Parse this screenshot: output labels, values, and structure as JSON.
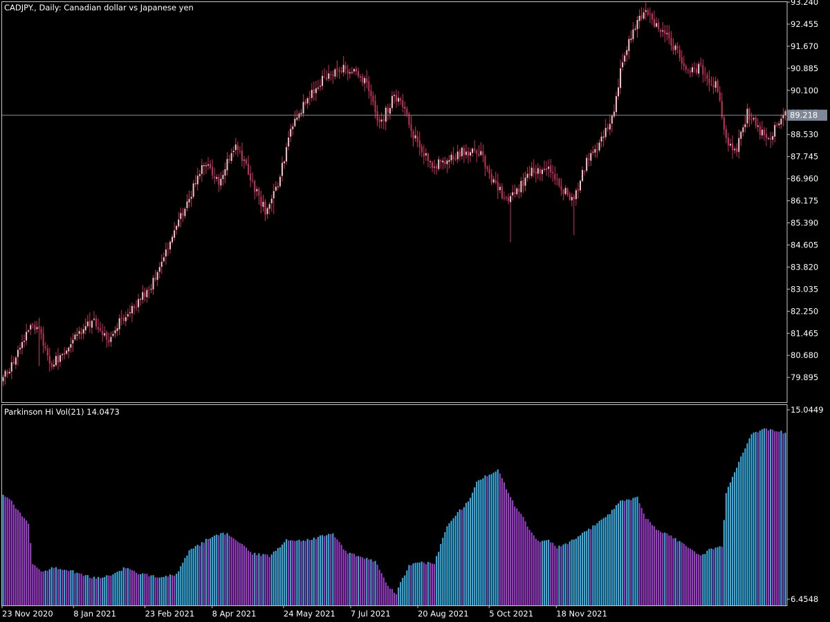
{
  "colors": {
    "background": "#000000",
    "frame": "#c8c8c8",
    "candle": "#c8305e",
    "bull_body": "#f4c6c6",
    "price_line": "#8a8f99",
    "price_tag": "#7f8897",
    "hist_up": "#3ab4e8",
    "hist_down": "#a13fd0",
    "text": "#ffffff"
  },
  "main_title": "CADJPY., Daily:  Canadian dollar vs Japanese yen",
  "indicator_title": "Parkinson Hi Vol(21) 14.0473",
  "chart_data": [
    {
      "type": "candlestick",
      "symbol": "CADJPY.",
      "timeframe": "Daily",
      "description": "Canadian dollar vs Japanese yen",
      "ylim": [
        79.26,
        93.24
      ],
      "y_ticks": [
        "93.240",
        "92.455",
        "91.670",
        "90.885",
        "90.100",
        "89.315",
        "88.530",
        "87.745",
        "86.960",
        "86.175",
        "85.390",
        "84.605",
        "83.820",
        "83.035",
        "82.250",
        "81.465",
        "80.680",
        "79.895"
      ],
      "current_price": 89.218,
      "current_price_label": "89.218",
      "close_anchors": [
        [
          0,
          79.9
        ],
        [
          6,
          80.6
        ],
        [
          12,
          81.7
        ],
        [
          17,
          81.6
        ],
        [
          22,
          80.3
        ],
        [
          28,
          80.7
        ],
        [
          35,
          81.4
        ],
        [
          42,
          81.9
        ],
        [
          50,
          81.3
        ],
        [
          56,
          82.0
        ],
        [
          64,
          82.6
        ],
        [
          70,
          83.2
        ],
        [
          76,
          84.2
        ],
        [
          85,
          85.8
        ],
        [
          95,
          87.5
        ],
        [
          102,
          86.9
        ],
        [
          110,
          88.2
        ],
        [
          118,
          86.8
        ],
        [
          124,
          85.8
        ],
        [
          130,
          86.8
        ],
        [
          136,
          88.6
        ],
        [
          142,
          89.6
        ],
        [
          150,
          90.4
        ],
        [
          158,
          90.8
        ],
        [
          165,
          90.9
        ],
        [
          172,
          90.4
        ],
        [
          178,
          88.9
        ],
        [
          185,
          89.9
        ],
        [
          190,
          89.6
        ],
        [
          194,
          88.5
        ],
        [
          202,
          87.5
        ],
        [
          208,
          87.5
        ],
        [
          216,
          87.9
        ],
        [
          226,
          87.9
        ],
        [
          232,
          86.8
        ],
        [
          238,
          86.2
        ],
        [
          244,
          86.6
        ],
        [
          250,
          87.3
        ],
        [
          258,
          87.3
        ],
        [
          264,
          86.6
        ],
        [
          270,
          86.2
        ],
        [
          276,
          87.6
        ],
        [
          283,
          88.3
        ],
        [
          289,
          89.4
        ],
        [
          293,
          91.2
        ],
        [
          298,
          92.3
        ],
        [
          303,
          92.9
        ],
        [
          309,
          92.4
        ],
        [
          316,
          91.8
        ],
        [
          323,
          90.9
        ],
        [
          330,
          90.9
        ],
        [
          335,
          90.4
        ],
        [
          338,
          90.2
        ],
        [
          342,
          88.3
        ],
        [
          347,
          88.0
        ],
        [
          352,
          89.3
        ],
        [
          358,
          88.6
        ],
        [
          362,
          88.4
        ],
        [
          366,
          88.8
        ],
        [
          370,
          89.3
        ]
      ],
      "lows": [
        {
          "i": 17,
          "low": 80.3
        },
        {
          "i": 128,
          "low": 85.7
        },
        {
          "i": 240,
          "low": 84.7
        },
        {
          "i": 270,
          "low": 84.95
        }
      ],
      "highs": [
        {
          "i": 306,
          "high": 93.05
        }
      ]
    },
    {
      "type": "bar",
      "name": "Parkinson Hi Vol(21)",
      "last_value": 14.0473,
      "ylim": [
        6.4548,
        15.0449
      ],
      "y_ticks": [
        "15.0449",
        "6.4548"
      ],
      "value_anchors": [
        [
          0,
          11.3
        ],
        [
          4,
          11.0
        ],
        [
          8,
          10.5
        ],
        [
          12,
          10.0
        ],
        [
          14,
          8.3
        ],
        [
          18,
          7.9
        ],
        [
          24,
          8.1
        ],
        [
          34,
          7.9
        ],
        [
          44,
          7.6
        ],
        [
          52,
          7.8
        ],
        [
          58,
          8.1
        ],
        [
          64,
          7.8
        ],
        [
          74,
          7.7
        ],
        [
          82,
          7.8
        ],
        [
          88,
          8.8
        ],
        [
          96,
          9.3
        ],
        [
          104,
          9.6
        ],
        [
          108,
          9.5
        ],
        [
          112,
          9.2
        ],
        [
          118,
          8.7
        ],
        [
          126,
          8.6
        ],
        [
          134,
          9.3
        ],
        [
          142,
          9.3
        ],
        [
          148,
          9.4
        ],
        [
          156,
          9.6
        ],
        [
          162,
          8.8
        ],
        [
          170,
          8.5
        ],
        [
          176,
          8.4
        ],
        [
          182,
          7.3
        ],
        [
          186,
          6.95
        ],
        [
          188,
          7.4
        ],
        [
          192,
          8.2
        ],
        [
          198,
          8.3
        ],
        [
          204,
          8.3
        ],
        [
          210,
          9.9
        ],
        [
          216,
          10.6
        ],
        [
          220,
          11.0
        ],
        [
          224,
          11.9
        ],
        [
          234,
          12.4
        ],
        [
          238,
          11.6
        ],
        [
          242,
          10.8
        ],
        [
          246,
          10.3
        ],
        [
          250,
          9.6
        ],
        [
          254,
          9.2
        ],
        [
          258,
          9.3
        ],
        [
          262,
          9.0
        ],
        [
          268,
          9.2
        ],
        [
          276,
          9.7
        ],
        [
          286,
          10.4
        ],
        [
          292,
          11.0
        ],
        [
          300,
          11.2
        ],
        [
          304,
          10.3
        ],
        [
          310,
          9.7
        ],
        [
          316,
          9.5
        ],
        [
          322,
          9.1
        ],
        [
          326,
          8.9
        ],
        [
          330,
          8.6
        ],
        [
          334,
          8.9
        ],
        [
          340,
          9.0
        ],
        [
          342,
          11.4
        ],
        [
          346,
          12.3
        ],
        [
          350,
          13.2
        ],
        [
          354,
          14.0
        ],
        [
          360,
          14.2
        ],
        [
          366,
          14.1
        ],
        [
          370,
          14.05
        ]
      ]
    }
  ],
  "x_axis_labels": [
    {
      "label": "23 Nov 2020",
      "index": 0
    },
    {
      "label": "8 Jan 2021",
      "index": 33
    },
    {
      "label": "23 Feb 2021",
      "index": 66
    },
    {
      "label": "8 Apr 2021",
      "index": 97
    },
    {
      "label": "24 May 2021",
      "index": 130
    },
    {
      "label": "7 Jul 2021",
      "index": 161
    },
    {
      "label": "20 Aug 2021",
      "index": 192
    },
    {
      "label": "5 Oct 2021",
      "index": 225
    },
    {
      "label": "18 Nov 2021",
      "index": 256
    }
  ]
}
